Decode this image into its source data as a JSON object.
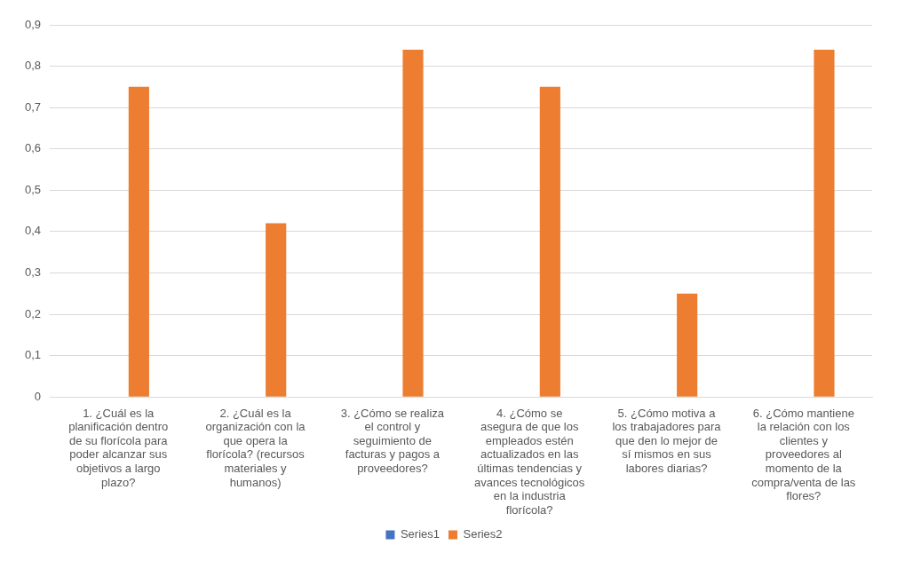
{
  "chart_data": {
    "type": "bar",
    "categories": [
      "1. ¿Cuál es la planificación dentro de su florícola para poder alcanzar sus objetivos a largo plazo?",
      "2. ¿Cuál es la organización con la que opera la florícola? (recursos materiales y humanos)",
      "3. ¿Cómo se realiza el control y seguimiento de facturas y pagos a proveedores?",
      "4. ¿Cómo se asegura de que los empleados estén actualizados en las últimas tendencias y avances tecnológicos en la industria florícola?",
      "5. ¿Cómo motiva a los trabajadores para que den lo mejor de sí mismos en sus labores diarias?",
      "6. ¿Cómo mantiene la relación con los clientes y proveedores al momento de la compra/venta de las flores?"
    ],
    "series": [
      {
        "name": "Series1",
        "color": "#4472c4",
        "values": [
          0,
          0,
          0,
          0,
          0,
          0
        ]
      },
      {
        "name": "Series2",
        "color": "#ed7d31",
        "values": [
          0.75,
          0.42,
          0.84,
          0.75,
          0.25,
          0.84
        ]
      }
    ],
    "ylim": [
      0,
      0.9
    ],
    "yticks": [
      0,
      {
        "value": 0.1,
        "label": "0,1"
      },
      {
        "value": 0.2,
        "label": "0,2"
      },
      {
        "value": 0.3,
        "label": "0,3"
      },
      {
        "value": 0.4,
        "label": "0,4"
      },
      {
        "value": 0.5,
        "label": "0,5"
      },
      {
        "value": 0.6,
        "label": "0,6"
      },
      {
        "value": 0.7,
        "label": "0,7"
      },
      {
        "value": 0.8,
        "label": "0,8"
      },
      {
        "value": 0.9,
        "label": "0,9"
      }
    ],
    "grid": "y",
    "legend": "bottom"
  }
}
